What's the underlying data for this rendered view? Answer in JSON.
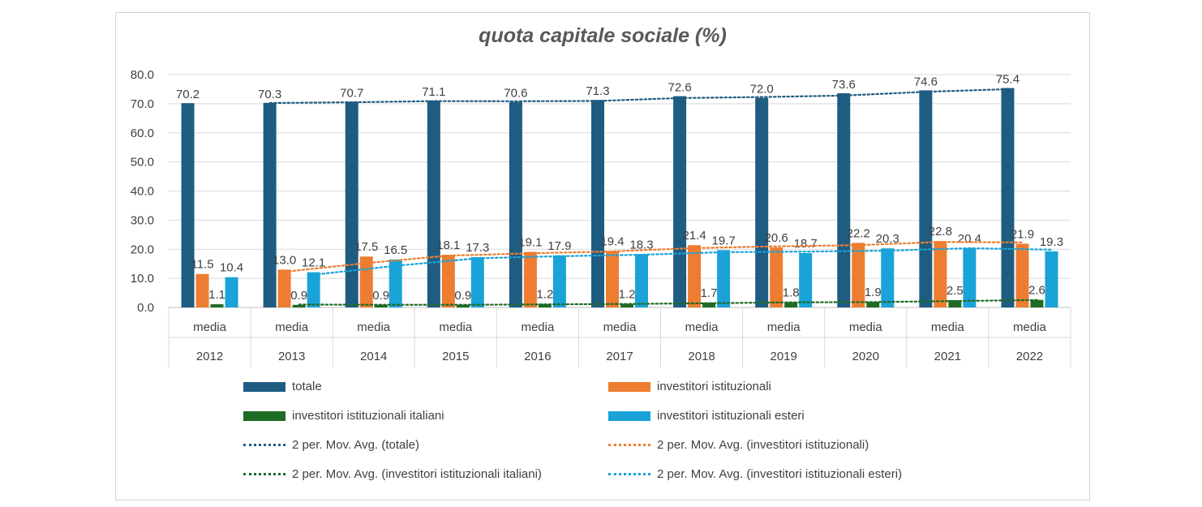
{
  "chart_data": {
    "type": "bar",
    "title": "quota capitale sociale (%)",
    "categories_top": [
      "media",
      "media",
      "media",
      "media",
      "media",
      "media",
      "media",
      "media",
      "media",
      "media",
      "media"
    ],
    "categories": [
      "2012",
      "2013",
      "2014",
      "2015",
      "2016",
      "2017",
      "2018",
      "2019",
      "2020",
      "2021",
      "2022"
    ],
    "ylim": [
      0,
      80
    ],
    "yticks": [
      "0.0",
      "10.0",
      "20.0",
      "30.0",
      "40.0",
      "50.0",
      "60.0",
      "70.0",
      "80.0"
    ],
    "grid": true,
    "legend_position": "bottom",
    "series": [
      {
        "name": "totale",
        "color": "#1F5C82",
        "values": [
          70.2,
          70.3,
          70.7,
          71.1,
          70.6,
          71.3,
          72.6,
          72.0,
          73.6,
          74.6,
          75.4
        ],
        "labels": [
          "70.2",
          "70.3",
          "70.7",
          "71.1",
          "70.6",
          "71.3",
          "72.6",
          "72.0",
          "73.6",
          "74.6",
          "75.4"
        ]
      },
      {
        "name": "investitori istituzionali",
        "color": "#ED7D31",
        "values": [
          11.5,
          13.0,
          17.5,
          18.1,
          19.1,
          19.4,
          21.4,
          20.6,
          22.2,
          22.8,
          21.9
        ],
        "labels": [
          "11.5",
          "13.0",
          "17.5",
          "18.1",
          "19.1",
          "19.4",
          "21.4",
          "20.6",
          "22.2",
          "22.8",
          "21.9"
        ]
      },
      {
        "name": "investitori istituzionali italiani",
        "color": "#1E6B25",
        "values": [
          1.1,
          0.9,
          0.9,
          0.9,
          1.2,
          1.2,
          1.7,
          1.8,
          1.9,
          2.5,
          2.6
        ],
        "labels": [
          "1.1",
          "0.9",
          "0.9",
          "0.9",
          "1.2",
          "1.2",
          "1.7",
          "1.8",
          "1.9",
          "2.5",
          "2.6"
        ]
      },
      {
        "name": "investitori istituzionali esteri",
        "color": "#1AA3D8",
        "values": [
          10.4,
          12.1,
          16.5,
          17.3,
          17.9,
          18.3,
          19.7,
          18.7,
          20.3,
          20.4,
          19.3
        ],
        "labels": [
          "10.4",
          "12.1",
          "16.5",
          "17.3",
          "17.9",
          "18.3",
          "19.7",
          "18.7",
          "20.3",
          "20.4",
          "19.3"
        ]
      }
    ],
    "trendlines": [
      {
        "name": "2 per. Mov. Avg. (totale)",
        "color": "#1F5C82"
      },
      {
        "name": "2 per. Mov. Avg. (investitori istituzionali)",
        "color": "#ED7D31"
      },
      {
        "name": "2 per. Mov. Avg. (investitori istituzionali italiani)",
        "color": "#1E6B25"
      },
      {
        "name": "2 per. Mov. Avg. (investitori istituzionali esteri)",
        "color": "#1AA3D8"
      }
    ]
  }
}
